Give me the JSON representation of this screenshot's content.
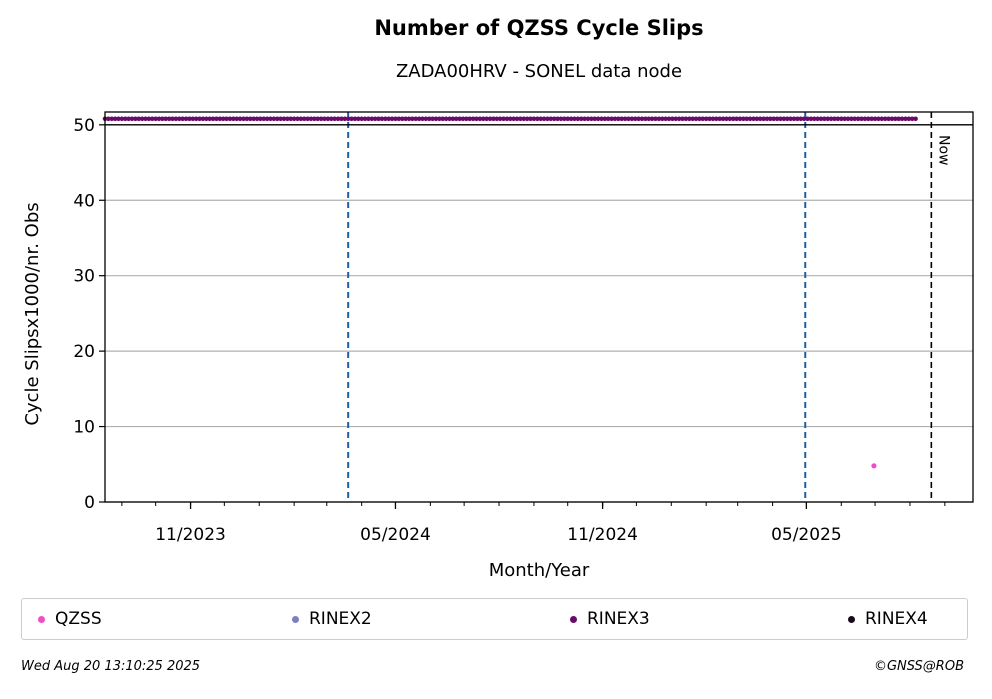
{
  "chart_data": {
    "type": "scatter",
    "title": "Number of QZSS Cycle Slips",
    "subtitle": "ZADA00HRV - SONEL data node",
    "xlabel": "Month/Year",
    "ylabel": "Cycle Slipsx1000/nr. Obs",
    "ylim": [
      0,
      51.7
    ],
    "yticks": [
      0,
      10,
      20,
      30,
      40,
      50
    ],
    "xlim": [
      "2023-08-17",
      "2025-09-26"
    ],
    "xticks": [
      {
        "date": "2023-11-01",
        "label": "11/2023"
      },
      {
        "date": "2024-05-01",
        "label": "05/2024"
      },
      {
        "date": "2024-11-01",
        "label": "11/2024"
      },
      {
        "date": "2025-05-01",
        "label": "05/2025"
      }
    ],
    "grid": "y",
    "vlines": [
      {
        "date": "2024-03-20",
        "color": "#1a5fa8",
        "style": "dashed"
      },
      {
        "date": "2025-04-30",
        "color": "#1a5fa8",
        "style": "dashed"
      }
    ],
    "now_line": {
      "date": "2025-08-20",
      "label": "Now"
    },
    "series": [
      {
        "name": "QZSS",
        "color": "#ee4fc6",
        "points": [
          {
            "x": "2025-06-30",
            "y": 4.8
          }
        ]
      },
      {
        "name": "RINEX2",
        "color": "#7f7fbf",
        "points": []
      },
      {
        "name": "RINEX3",
        "color": "#6a0a6a",
        "range": {
          "start": "2023-08-17",
          "end": "2025-08-07",
          "y": 50.8
        }
      },
      {
        "name": "RINEX4",
        "color": "#1a0a1a",
        "points": []
      }
    ],
    "legend": "bottom"
  },
  "footer": {
    "timestamp": "Wed Aug 20 13:10:25 2025",
    "credit": "©GNSS@ROB"
  }
}
